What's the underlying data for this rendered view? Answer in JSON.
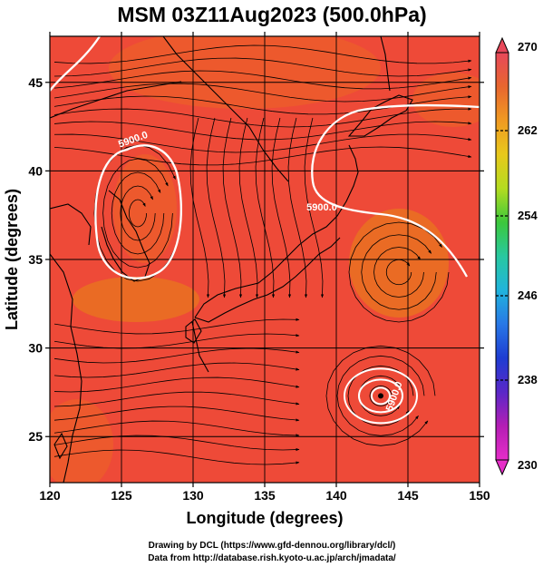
{
  "title": "MSM 03Z11Aug2023 (500.0hPa)",
  "xlabel": "Longitude (degrees)",
  "ylabel": "Latitude  (degrees)",
  "xticks": [
    "120",
    "125",
    "130",
    "135",
    "140",
    "145",
    "150"
  ],
  "yticks": [
    "25",
    "30",
    "35",
    "40",
    "45"
  ],
  "colorbar": {
    "labels": [
      "270",
      "262",
      "254",
      "246",
      "238",
      "230"
    ],
    "colors": [
      "#e8485a",
      "#e8662f",
      "#f09a22",
      "#e8c81c",
      "#b4dc20",
      "#3cc83c",
      "#28c8a0",
      "#20b4dc",
      "#2878e6",
      "#1e3cd2",
      "#5a28c8",
      "#b41eb4",
      "#e62dc8"
    ]
  },
  "contour_labels": [
    "5900.0",
    "5900.0",
    "5900.0"
  ],
  "credit_line1": "Drawing by DCL (https://www.gfd-dennou.org/library/dcl/)",
  "credit_line2": "Data from http://database.rish.kyoto-u.ac.jp/arch/jmadata/",
  "field_colors": {
    "base": "#ee4a38",
    "warm": "#ec5f2a",
    "hot": "#e8771e",
    "contour": "#ffffff"
  },
  "chart_data": {
    "type": "heatmap",
    "title": "MSM 03Z11Aug2023 (500.0hPa)",
    "xlabel": "Longitude (degrees)",
    "ylabel": "Latitude  (degrees)",
    "xlim": [
      120,
      150
    ],
    "ylim": [
      22.4,
      47.6
    ],
    "colorbar_range": [
      230,
      270
    ],
    "contour_value": 5900.0,
    "typhoon_center": [
      143.1,
      27.3
    ]
  }
}
